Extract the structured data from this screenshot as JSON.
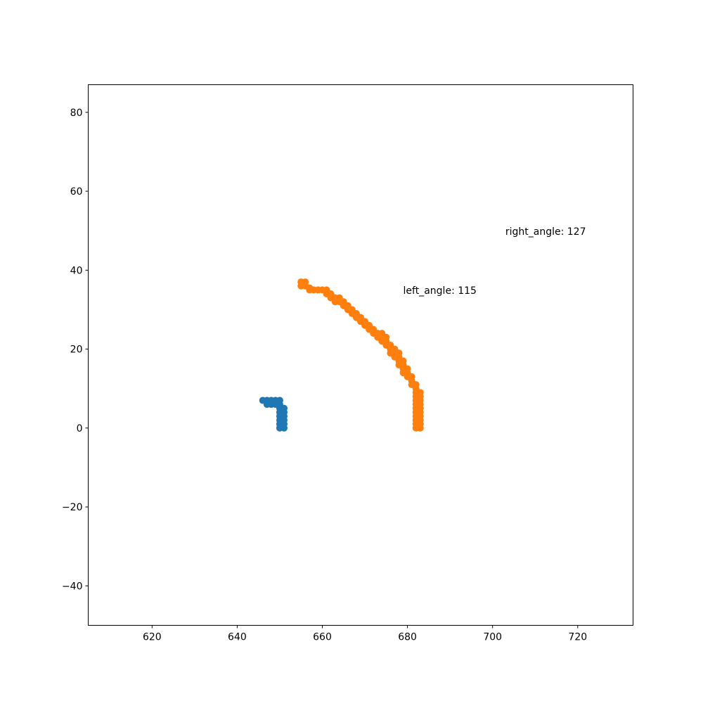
{
  "chart_data": {
    "type": "scatter",
    "title": "",
    "xlabel": "",
    "ylabel": "",
    "xlim": [
      605,
      733
    ],
    "ylim": [
      -50,
      87
    ],
    "grid": false,
    "x_ticks": [
      620,
      640,
      660,
      680,
      700,
      720
    ],
    "y_ticks": [
      -40,
      -20,
      0,
      20,
      40,
      60,
      80
    ],
    "x_tick_labels": [
      "620",
      "640",
      "660",
      "680",
      "700",
      "720"
    ],
    "y_tick_labels": [
      "−40",
      "−20",
      "0",
      "20",
      "40",
      "60",
      "80"
    ],
    "series": [
      {
        "color": "#1f77b4",
        "points": [
          [
            646,
            7
          ],
          [
            647,
            7
          ],
          [
            647,
            6
          ],
          [
            648,
            7
          ],
          [
            648,
            6
          ],
          [
            649,
            7
          ],
          [
            649,
            6
          ],
          [
            650,
            7
          ],
          [
            650,
            6
          ],
          [
            650,
            5
          ],
          [
            651,
            5
          ],
          [
            650,
            4
          ],
          [
            651,
            4
          ],
          [
            650,
            3
          ],
          [
            651,
            3
          ],
          [
            650,
            2
          ],
          [
            651,
            2
          ],
          [
            650,
            1
          ],
          [
            651,
            1
          ],
          [
            650,
            0
          ],
          [
            651,
            0
          ]
        ]
      },
      {
        "color": "#ff7f0e",
        "points": [
          [
            655,
            37
          ],
          [
            656,
            37
          ],
          [
            655,
            36
          ],
          [
            656,
            36
          ],
          [
            657,
            35.5
          ],
          [
            657,
            35
          ],
          [
            658,
            35
          ],
          [
            659,
            35
          ],
          [
            660,
            35
          ],
          [
            661,
            35
          ],
          [
            661,
            34
          ],
          [
            662,
            34
          ],
          [
            662,
            33
          ],
          [
            663,
            33
          ],
          [
            663,
            32
          ],
          [
            664,
            33
          ],
          [
            664,
            32
          ],
          [
            665,
            32
          ],
          [
            665,
            31
          ],
          [
            666,
            31
          ],
          [
            666,
            30
          ],
          [
            667,
            30
          ],
          [
            667,
            29
          ],
          [
            668,
            29
          ],
          [
            668,
            28
          ],
          [
            669,
            28
          ],
          [
            669,
            27
          ],
          [
            670,
            27
          ],
          [
            670,
            26
          ],
          [
            671,
            26
          ],
          [
            671,
            25
          ],
          [
            672,
            25
          ],
          [
            672,
            24
          ],
          [
            673,
            24
          ],
          [
            673,
            23
          ],
          [
            674,
            24
          ],
          [
            674,
            23
          ],
          [
            674,
            22
          ],
          [
            675,
            23
          ],
          [
            675,
            22
          ],
          [
            675,
            21
          ],
          [
            676,
            21
          ],
          [
            676,
            20
          ],
          [
            676,
            19
          ],
          [
            677,
            20
          ],
          [
            677,
            19
          ],
          [
            677,
            18
          ],
          [
            678,
            19
          ],
          [
            678,
            18
          ],
          [
            678,
            17
          ],
          [
            678,
            16
          ],
          [
            679,
            17
          ],
          [
            679,
            16
          ],
          [
            679,
            15
          ],
          [
            679,
            14
          ],
          [
            680,
            15
          ],
          [
            680,
            14
          ],
          [
            680,
            13
          ],
          [
            681,
            13
          ],
          [
            681,
            12
          ],
          [
            681,
            11
          ],
          [
            682,
            11
          ],
          [
            682,
            10
          ],
          [
            682,
            9
          ],
          [
            683,
            9
          ],
          [
            682,
            8
          ],
          [
            683,
            8
          ],
          [
            682,
            7
          ],
          [
            683,
            7
          ],
          [
            682,
            6
          ],
          [
            683,
            6
          ],
          [
            682,
            5
          ],
          [
            683,
            5
          ],
          [
            682,
            4
          ],
          [
            683,
            4
          ],
          [
            682,
            3
          ],
          [
            683,
            3
          ],
          [
            682,
            2
          ],
          [
            683,
            2
          ],
          [
            682,
            1
          ],
          [
            683,
            1
          ],
          [
            682,
            0
          ],
          [
            683,
            0
          ]
        ]
      }
    ],
    "annotations": [
      {
        "text": "left_angle: 115",
        "x": 679,
        "y": 34
      },
      {
        "text": "right_angle: 127",
        "x": 703,
        "y": 49
      }
    ]
  }
}
